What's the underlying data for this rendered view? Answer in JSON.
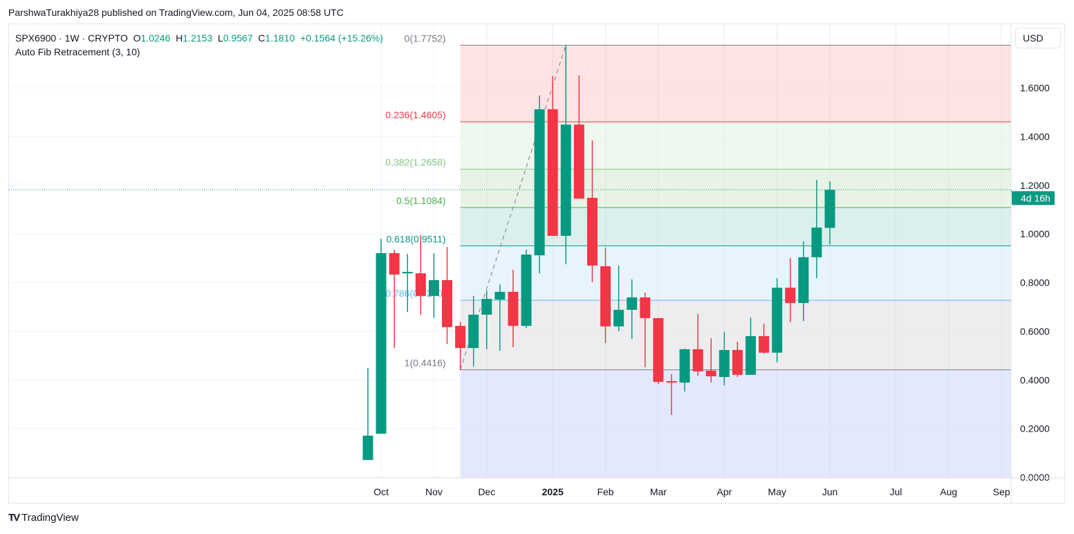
{
  "publisher_line": "ParshwaTurakhiya28 published on TradingView.com, Jun 04, 2025 08:58 UTC",
  "legend": {
    "symbol": "SPX6900 · 1W · CRYPTO",
    "o_label": "O",
    "o": "1.0246",
    "h_label": "H",
    "h": "1.2153",
    "l_label": "L",
    "l": "0.9567",
    "c_label": "C",
    "c": "1.1810",
    "change": "+0.1564 (+15.26%)",
    "indicator": "Auto Fib Retracement (3, 10)"
  },
  "currency": "USD",
  "countdown": "4d 16h",
  "footer": {
    "logo": "TV",
    "brand": "TradingView"
  },
  "colors": {
    "up": "#089981",
    "down": "#f23645",
    "current_price": "#089981"
  },
  "chart_data": {
    "type": "candlestick",
    "ylim": [
      0,
      1.8
    ],
    "yticks": [
      "0.0000",
      "0.2000",
      "0.4000",
      "0.6000",
      "0.8000",
      "1.0000",
      "1.2000",
      "1.4000",
      "1.6000"
    ],
    "xticks": [
      {
        "label": "Oct",
        "bold": false,
        "index": 1
      },
      {
        "label": "Nov",
        "bold": false,
        "index": 5
      },
      {
        "label": "Dec",
        "bold": false,
        "index": 9
      },
      {
        "label": "2025",
        "bold": true,
        "index": 14
      },
      {
        "label": "Feb",
        "bold": false,
        "index": 18
      },
      {
        "label": "Mar",
        "bold": false,
        "index": 22
      },
      {
        "label": "Apr",
        "bold": false,
        "index": 27
      },
      {
        "label": "May",
        "bold": false,
        "index": 31
      },
      {
        "label": "Jun",
        "bold": false,
        "index": 35
      },
      {
        "label": "Jul",
        "bold": false,
        "index": 40
      },
      {
        "label": "Aug",
        "bold": false,
        "index": 44
      },
      {
        "label": "Sep",
        "bold": false,
        "index": 48
      }
    ],
    "current_price": 1.181,
    "candles": [
      [
        0.071,
        0.449,
        0.071,
        0.171
      ],
      [
        0.179,
        0.98,
        0.179,
        0.921
      ],
      [
        0.921,
        0.935,
        0.531,
        0.833
      ],
      [
        0.838,
        0.918,
        0.679,
        0.844
      ],
      [
        0.838,
        0.995,
        0.668,
        0.745
      ],
      [
        0.745,
        0.921,
        0.654,
        0.81
      ],
      [
        0.81,
        0.946,
        0.548,
        0.617
      ],
      [
        0.622,
        0.639,
        0.441,
        0.531
      ],
      [
        0.531,
        0.745,
        0.455,
        0.668
      ],
      [
        0.668,
        0.767,
        0.526,
        0.733
      ],
      [
        0.73,
        0.793,
        0.52,
        0.762
      ],
      [
        0.762,
        0.853,
        0.534,
        0.622
      ],
      [
        0.622,
        0.935,
        0.614,
        0.915
      ],
      [
        0.912,
        1.569,
        0.838,
        1.512
      ],
      [
        1.512,
        1.648,
        0.992,
        0.992
      ],
      [
        0.992,
        1.775,
        0.875,
        1.449
      ],
      [
        1.449,
        1.651,
        1.145,
        1.145
      ],
      [
        1.148,
        1.384,
        0.801,
        0.87
      ],
      [
        0.867,
        0.944,
        0.551,
        0.62
      ],
      [
        0.62,
        0.87,
        0.6,
        0.688
      ],
      [
        0.688,
        0.813,
        0.568,
        0.739
      ],
      [
        0.739,
        0.759,
        0.452,
        0.654
      ],
      [
        0.654,
        0.654,
        0.384,
        0.392
      ],
      [
        0.395,
        0.423,
        0.256,
        0.389
      ],
      [
        0.389,
        0.529,
        0.352,
        0.526
      ],
      [
        0.526,
        0.671,
        0.418,
        0.435
      ],
      [
        0.438,
        0.571,
        0.389,
        0.415
      ],
      [
        0.412,
        0.597,
        0.378,
        0.523
      ],
      [
        0.523,
        0.557,
        0.412,
        0.421
      ],
      [
        0.421,
        0.656,
        0.421,
        0.58
      ],
      [
        0.58,
        0.631,
        0.509,
        0.512
      ],
      [
        0.512,
        0.818,
        0.472,
        0.779
      ],
      [
        0.779,
        0.901,
        0.637,
        0.716
      ],
      [
        0.716,
        0.969,
        0.642,
        0.904
      ],
      [
        0.904,
        1.222,
        0.818,
        1.026
      ],
      [
        1.0246,
        1.2153,
        0.9567,
        1.181
      ]
    ],
    "candle_fields": [
      "open",
      "high",
      "low",
      "close"
    ],
    "fib": {
      "start_index": 7,
      "trend": {
        "from_index": 7,
        "from_price": 0.4416,
        "to_index": 15,
        "to_price": 1.7752
      },
      "levels": [
        {
          "ratio": "0",
          "price": 1.7752,
          "label": "0(1.7752)",
          "line": "#787b86",
          "fill": "#fde0e0",
          "text": "#787b86"
        },
        {
          "ratio": "0.236",
          "price": 1.4605,
          "label": "0.236(1.4605)",
          "line": "#f23645",
          "fill": "#edf7ec",
          "text": "#f23645"
        },
        {
          "ratio": "0.382",
          "price": 1.2658,
          "label": "0.382(1.2658)",
          "line": "#81c784",
          "fill": "#e3f2e3",
          "text": "#81c784"
        },
        {
          "ratio": "0.5",
          "price": 1.1084,
          "label": "0.5(1.1084)",
          "line": "#4caf50",
          "fill": "#d7eeea",
          "text": "#4caf50"
        },
        {
          "ratio": "0.618",
          "price": 0.9511,
          "label": "0.618(0.9511)",
          "line": "#089981",
          "fill": "#e6f3fd",
          "text": "#089981"
        },
        {
          "ratio": "0.786",
          "price": 0.727,
          "label": "0.786(0.7270)",
          "line": "#64b5f6",
          "fill": "#ebebed",
          "text": "#64b5f6"
        },
        {
          "ratio": "1",
          "price": 0.4416,
          "label": "1(0.4416)",
          "line": "#787b86",
          "fill": "#e0e6fd",
          "text": "#787b86"
        }
      ]
    }
  }
}
